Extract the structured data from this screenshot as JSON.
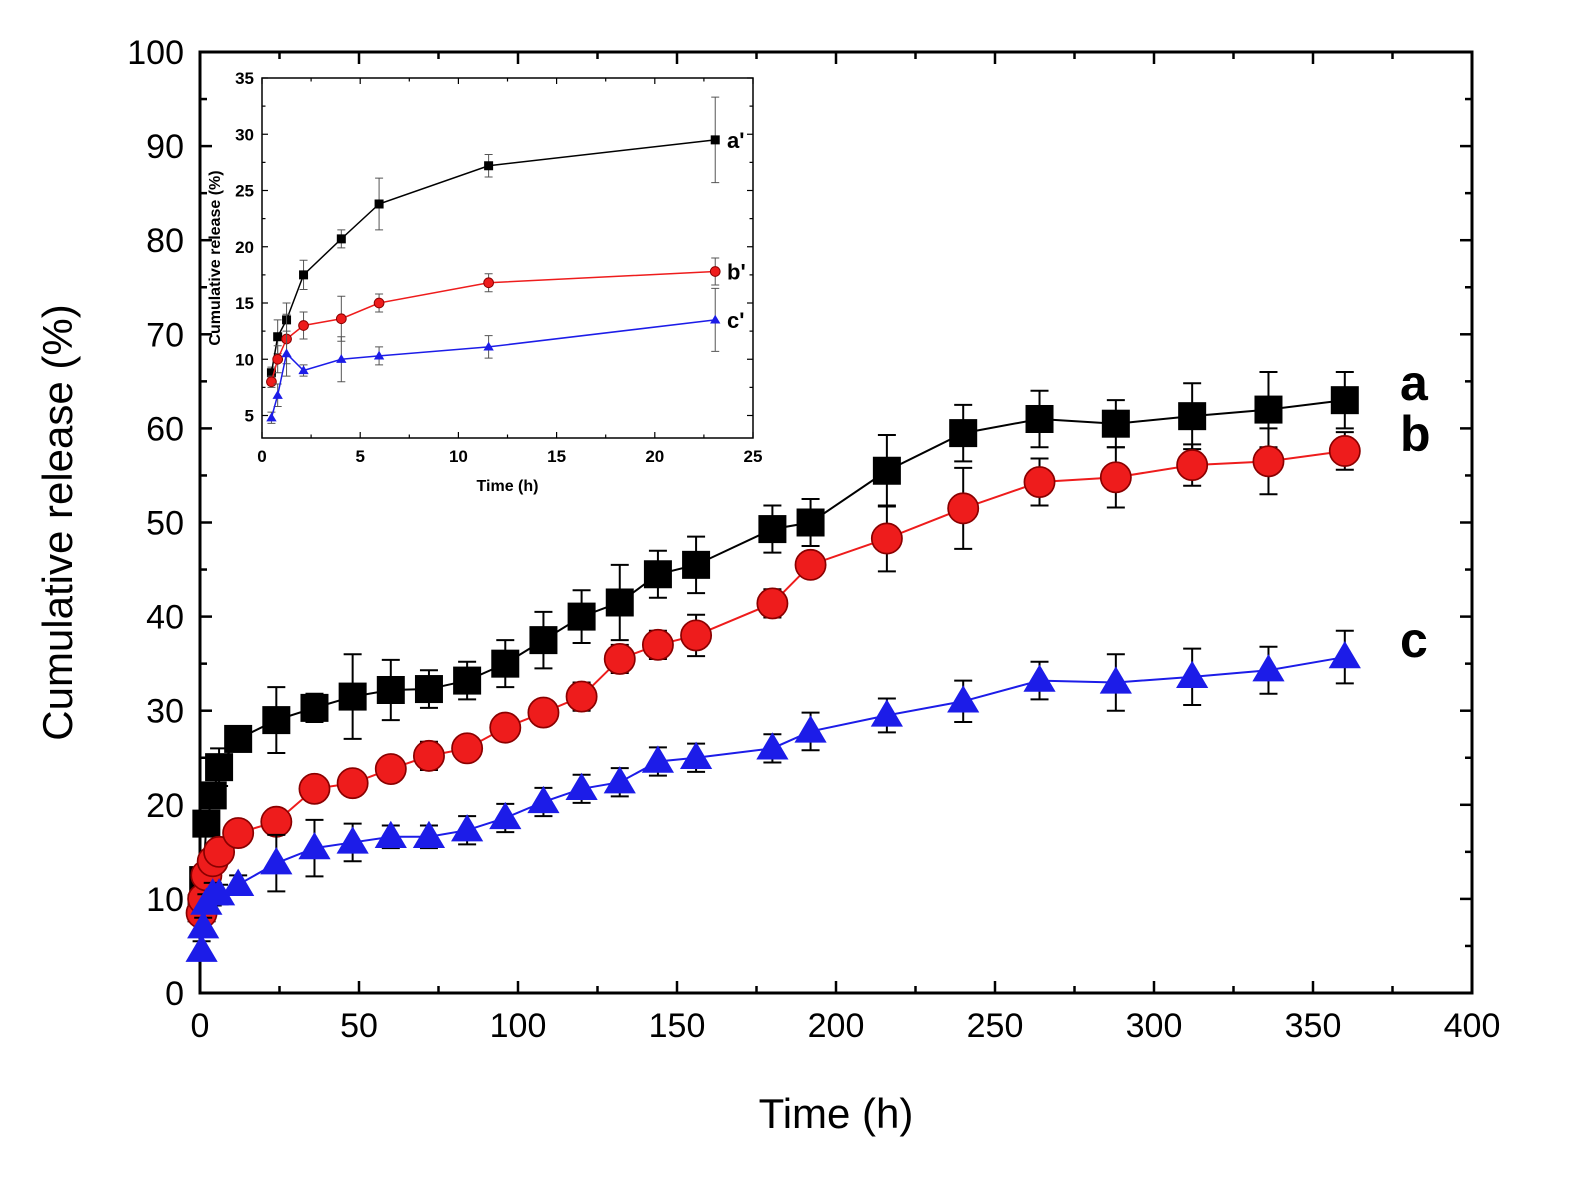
{
  "chart_data": [
    {
      "type": "line",
      "panel": "main",
      "xlabel": "Time (h)",
      "ylabel": "Cumulative release (%)",
      "xlim": [
        0,
        400
      ],
      "ylim": [
        0,
        100
      ],
      "xticks": [
        "0",
        "50",
        "100",
        "150",
        "200",
        "250",
        "300",
        "350",
        "400"
      ],
      "yticks": [
        "0",
        "10",
        "20",
        "30",
        "40",
        "50",
        "60",
        "70",
        "80",
        "90",
        "100"
      ],
      "series": [
        {
          "name": "a",
          "color": "#000000",
          "marker": "square",
          "x": [
            0.5,
            1,
            2,
            4,
            6,
            12,
            24,
            36,
            48,
            60,
            72,
            84,
            96,
            108,
            120,
            132,
            144,
            156,
            180,
            192,
            216,
            240,
            264,
            288,
            312,
            336,
            360
          ],
          "y": [
            9,
            12,
            18,
            21,
            24,
            27,
            29,
            30.3,
            31.5,
            32.2,
            32.3,
            33.2,
            35,
            37.5,
            40,
            41.5,
            44.5,
            45.5,
            49.3,
            50,
            55.5,
            59.5,
            61,
            60.5,
            61.3,
            62,
            63
          ],
          "err": [
            1,
            1,
            1.2,
            1.3,
            2,
            0.8,
            3.5,
            1.5,
            4.5,
            3.2,
            2,
            2,
            2.5,
            3,
            2.8,
            4,
            2.5,
            3,
            2.5,
            2.5,
            3.8,
            3,
            3,
            2.5,
            3.5,
            4,
            3
          ]
        },
        {
          "name": "b",
          "color": "#ee1c1c",
          "marker": "circle",
          "x": [
            0.5,
            1,
            2,
            4,
            6,
            12,
            24,
            36,
            48,
            60,
            72,
            84,
            96,
            108,
            120,
            132,
            144,
            156,
            180,
            192,
            216,
            240,
            264,
            288,
            312,
            336,
            360
          ],
          "y": [
            8.5,
            10,
            12.5,
            14,
            15,
            17,
            18.2,
            21.7,
            22.3,
            23.8,
            25.2,
            26,
            28.2,
            29.8,
            31.5,
            35.5,
            37,
            38,
            41.4,
            45.5,
            48.3,
            51.5,
            54.3,
            54.8,
            56.1,
            56.5,
            57.6
          ],
          "err": [
            1,
            1,
            1,
            1,
            1,
            1,
            1,
            1.2,
            1.2,
            1,
            1.5,
            1.2,
            1,
            1,
            1.5,
            1.5,
            1.5,
            2.2,
            1.5,
            1.2,
            3.5,
            4.3,
            2.5,
            3.2,
            2.2,
            3.5,
            2
          ]
        },
        {
          "name": "c",
          "color": "#1c1ce8",
          "marker": "triangle",
          "x": [
            0.5,
            1,
            2,
            4,
            6,
            12,
            24,
            36,
            48,
            60,
            72,
            84,
            96,
            108,
            120,
            132,
            144,
            156,
            180,
            192,
            216,
            240,
            264,
            288,
            312,
            336,
            360
          ],
          "y": [
            4.5,
            7,
            9.5,
            10.5,
            10.5,
            11.5,
            13.8,
            15.4,
            16,
            16.6,
            16.6,
            17.3,
            18.6,
            20.3,
            21.7,
            22.4,
            24.6,
            25,
            26,
            27.8,
            29.5,
            31,
            33.2,
            33,
            33.6,
            34.3,
            35.7
          ],
          "err": [
            1,
            1,
            1,
            1.2,
            1,
            1,
            3,
            3,
            2,
            1.2,
            1.2,
            1.5,
            1.5,
            1.5,
            1.5,
            1.5,
            1.5,
            1.5,
            1.5,
            2,
            1.8,
            2.2,
            2,
            3,
            3,
            2.5,
            2.8
          ]
        }
      ]
    },
    {
      "type": "line",
      "panel": "inset",
      "xlabel": "Time (h)",
      "ylabel": "Cumulative release (%)",
      "xlim": [
        0,
        26
      ],
      "ylim": [
        3,
        35
      ],
      "xticks": [
        "0",
        "5",
        "10",
        "15",
        "20",
        "25"
      ],
      "yticks": [
        "5",
        "10",
        "15",
        "20",
        "25",
        "30",
        "35"
      ],
      "series": [
        {
          "name": "a'",
          "color": "#000000",
          "marker": "square",
          "x": [
            0.5,
            0.83,
            1.3,
            2.2,
            4.2,
            6.2,
            12,
            24
          ],
          "y": [
            8.8,
            12,
            13.5,
            17.5,
            20.7,
            23.8,
            27.2,
            29.5
          ],
          "err": [
            0.5,
            1.5,
            1.5,
            1.3,
            0.8,
            2.3,
            1,
            3.8
          ]
        },
        {
          "name": "b'",
          "color": "#ee1c1c",
          "marker": "circle",
          "x": [
            0.5,
            0.83,
            1.3,
            2.2,
            4.2,
            6.2,
            12,
            24
          ],
          "y": [
            8,
            10,
            11.8,
            13,
            13.6,
            15,
            16.8,
            17.8
          ],
          "err": [
            0.5,
            1.2,
            2.2,
            1.2,
            2,
            0.8,
            0.8,
            1.2
          ]
        },
        {
          "name": "c'",
          "color": "#1c1ce8",
          "marker": "triangle",
          "x": [
            0.5,
            0.83,
            1.3,
            2.2,
            4.2,
            6.2,
            12,
            24
          ],
          "y": [
            4.8,
            6.8,
            10.5,
            9,
            10,
            10.3,
            11.1,
            13.5
          ],
          "err": [
            0.5,
            1,
            2,
            0.5,
            2,
            0.8,
            1,
            2.8
          ]
        }
      ]
    }
  ]
}
